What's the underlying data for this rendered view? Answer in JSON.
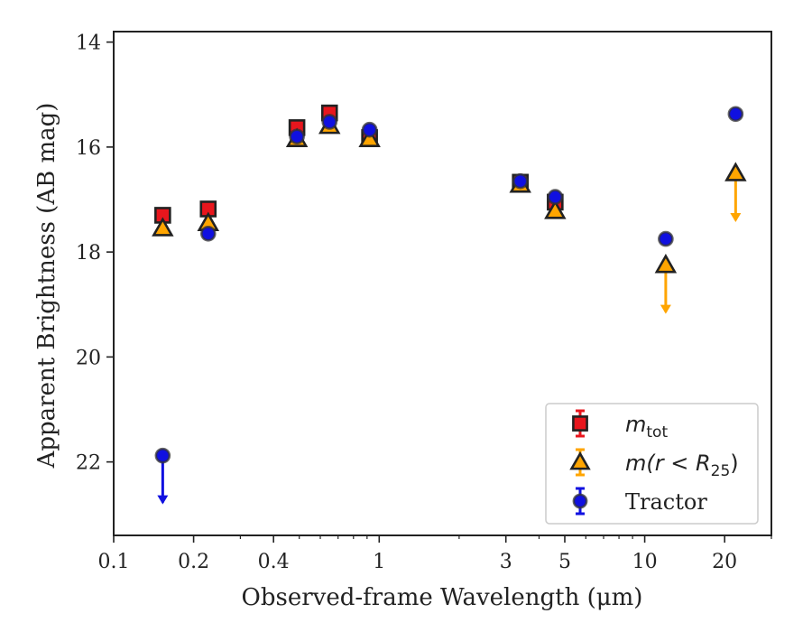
{
  "chart_data": {
    "type": "scatter",
    "xlabel": "Observed-frame Wavelength (μm)",
    "ylabel": "Apparent Brightness (AB mag)",
    "xscale": "log",
    "xlim": [
      0.1,
      30
    ],
    "ylim": [
      23.4,
      13.8
    ],
    "y_inverted": true,
    "xticks": [
      {
        "value": 0.1,
        "label": "0.1"
      },
      {
        "value": 0.2,
        "label": "0.2"
      },
      {
        "value": 0.4,
        "label": "0.4"
      },
      {
        "value": 1,
        "label": "1"
      },
      {
        "value": 3,
        "label": "3"
      },
      {
        "value": 5,
        "label": "5"
      },
      {
        "value": 10,
        "label": "10"
      },
      {
        "value": 20,
        "label": "20"
      }
    ],
    "yticks": [
      {
        "value": 14,
        "label": "14"
      },
      {
        "value": 16,
        "label": "16"
      },
      {
        "value": 18,
        "label": "18"
      },
      {
        "value": 20,
        "label": "20"
      },
      {
        "value": 22,
        "label": "22"
      }
    ],
    "grid": false,
    "legend_position": "lower-right",
    "series": [
      {
        "key": "mtot",
        "legend_label": "m",
        "legend_subscript": "tot",
        "marker": "square",
        "color": "#e8161d",
        "errorbar_color": "#e8161d",
        "points": [
          {
            "x": 0.153,
            "y": 17.3
          },
          {
            "x": 0.227,
            "y": 17.18
          },
          {
            "x": 0.49,
            "y": 15.63
          },
          {
            "x": 0.65,
            "y": 15.35
          },
          {
            "x": 0.92,
            "y": 15.82
          },
          {
            "x": 3.4,
            "y": 16.67
          },
          {
            "x": 4.6,
            "y": 17.05
          }
        ]
      },
      {
        "key": "mr25",
        "legend_label": "m(r < R",
        "legend_subscript": "25",
        "legend_suffix": ")",
        "marker": "triangle",
        "color": "#ffa500",
        "errorbar_color": "#ffa500",
        "points": [
          {
            "x": 0.153,
            "y": 17.55
          },
          {
            "x": 0.227,
            "y": 17.45
          },
          {
            "x": 0.49,
            "y": 15.85
          },
          {
            "x": 0.65,
            "y": 15.6
          },
          {
            "x": 0.92,
            "y": 15.85
          },
          {
            "x": 3.4,
            "y": 16.72
          },
          {
            "x": 4.6,
            "y": 17.22
          },
          {
            "x": 12.0,
            "y": 18.25,
            "upper_limit": true
          },
          {
            "x": 22.0,
            "y": 16.5,
            "upper_limit": true
          }
        ]
      },
      {
        "key": "tractor",
        "legend_label": "Tractor",
        "marker": "circle",
        "color": "#1010e0",
        "errorbar_color": "#1010e0",
        "points": [
          {
            "x": 0.153,
            "y": 21.88,
            "upper_limit": true
          },
          {
            "x": 0.227,
            "y": 17.65
          },
          {
            "x": 0.49,
            "y": 15.8
          },
          {
            "x": 0.65,
            "y": 15.52
          },
          {
            "x": 0.92,
            "y": 15.67
          },
          {
            "x": 3.4,
            "y": 16.65
          },
          {
            "x": 4.6,
            "y": 16.95
          },
          {
            "x": 12.0,
            "y": 17.75
          },
          {
            "x": 22.0,
            "y": 15.37
          }
        ]
      }
    ]
  }
}
